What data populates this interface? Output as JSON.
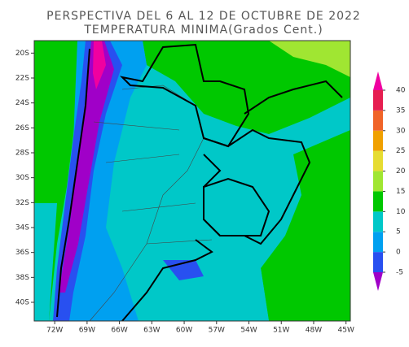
{
  "title": "PERSPECTIVA DEL 6 AL 12 DE OCTUBRE DE 2022",
  "subtitle": "TEMPERATURA MINIMA(Grados Cent.)",
  "map": {
    "xlim": [
      -73.9,
      -44.6
    ],
    "ylim": [
      -41.5,
      -19.0
    ],
    "xticks": [
      {
        "value": -72,
        "label": "72W"
      },
      {
        "value": -69,
        "label": "69W"
      },
      {
        "value": -66,
        "label": "66W"
      },
      {
        "value": -63,
        "label": "63W"
      },
      {
        "value": -60,
        "label": "60W"
      },
      {
        "value": -57,
        "label": "57W"
      },
      {
        "value": -54,
        "label": "54W"
      },
      {
        "value": -51,
        "label": "51W"
      },
      {
        "value": -48,
        "label": "48W"
      },
      {
        "value": -45,
        "label": "45W"
      }
    ],
    "yticks": [
      {
        "value": -20,
        "label": "20S"
      },
      {
        "value": -22,
        "label": "22S"
      },
      {
        "value": -24,
        "label": "24S"
      },
      {
        "value": -26,
        "label": "26S"
      },
      {
        "value": -28,
        "label": "28S"
      },
      {
        "value": -30,
        "label": "30S"
      },
      {
        "value": -32,
        "label": "32S"
      },
      {
        "value": -34,
        "label": "34S"
      },
      {
        "value": -36,
        "label": "36S"
      },
      {
        "value": -38,
        "label": "38S"
      },
      {
        "value": -40,
        "label": "40S"
      }
    ]
  },
  "colorbar": {
    "levels": [
      -5,
      0,
      5,
      10,
      15,
      20,
      25,
      30,
      35,
      40
    ],
    "colors": [
      "#a000c8",
      "#2850f0",
      "#00a0f0",
      "#00c8c8",
      "#00c800",
      "#a0e632",
      "#e6dc32",
      "#f0a000",
      "#f06428",
      "#e61e50",
      "#f000a0"
    ]
  }
}
